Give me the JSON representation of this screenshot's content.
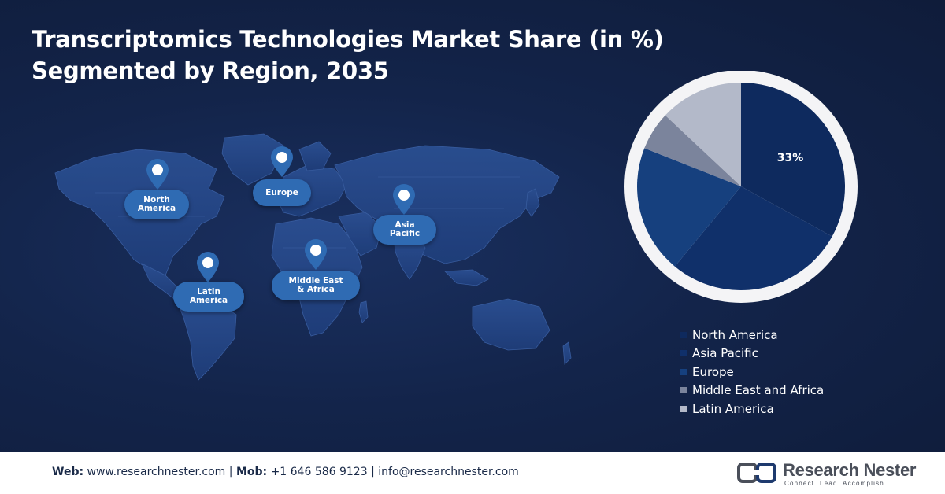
{
  "title": {
    "line1": "Transcriptomics Technologies Market Share (in %)",
    "line2": "Segmented by Region, 2035"
  },
  "map": {
    "regions": [
      {
        "label": "North\nAmerica",
        "icon": "location-pin-icon"
      },
      {
        "label": "Europe",
        "icon": "location-pin-icon"
      },
      {
        "label": "Asia\nPacific",
        "icon": "location-pin-icon"
      },
      {
        "label": "Latin\nAmerica",
        "icon": "location-pin-icon"
      },
      {
        "label": "Middle East\n& Africa",
        "icon": "location-pin-icon"
      }
    ]
  },
  "chart_data": {
    "type": "pie",
    "title": "Transcriptomics Technologies Market Share (in %) Segmented by Region, 2035",
    "categories": [
      "North America",
      "Asia Pacific",
      "Europe",
      "Middle East and Africa",
      "Latin America"
    ],
    "values": [
      33,
      28,
      20,
      6,
      13
    ],
    "data_labels": [
      "33%",
      "",
      "",
      "",
      ""
    ],
    "colors": [
      "#0e2a5e",
      "#10306a",
      "#16407e",
      "#7b849c",
      "#b3b9c9"
    ],
    "legend_position": "bottom-right"
  },
  "footer": {
    "web_label": "Web:",
    "web_value": "www.researchnester.com",
    "sep1": "|",
    "mob_label": "Mob:",
    "mob_value": "+1 646 586 9123",
    "sep2": "|",
    "email": "info@researchnester.com"
  },
  "logo": {
    "name": "Research Nester",
    "tagline": "Connect. Lead. Accomplish",
    "icon": "research-nester-logo-icon"
  }
}
